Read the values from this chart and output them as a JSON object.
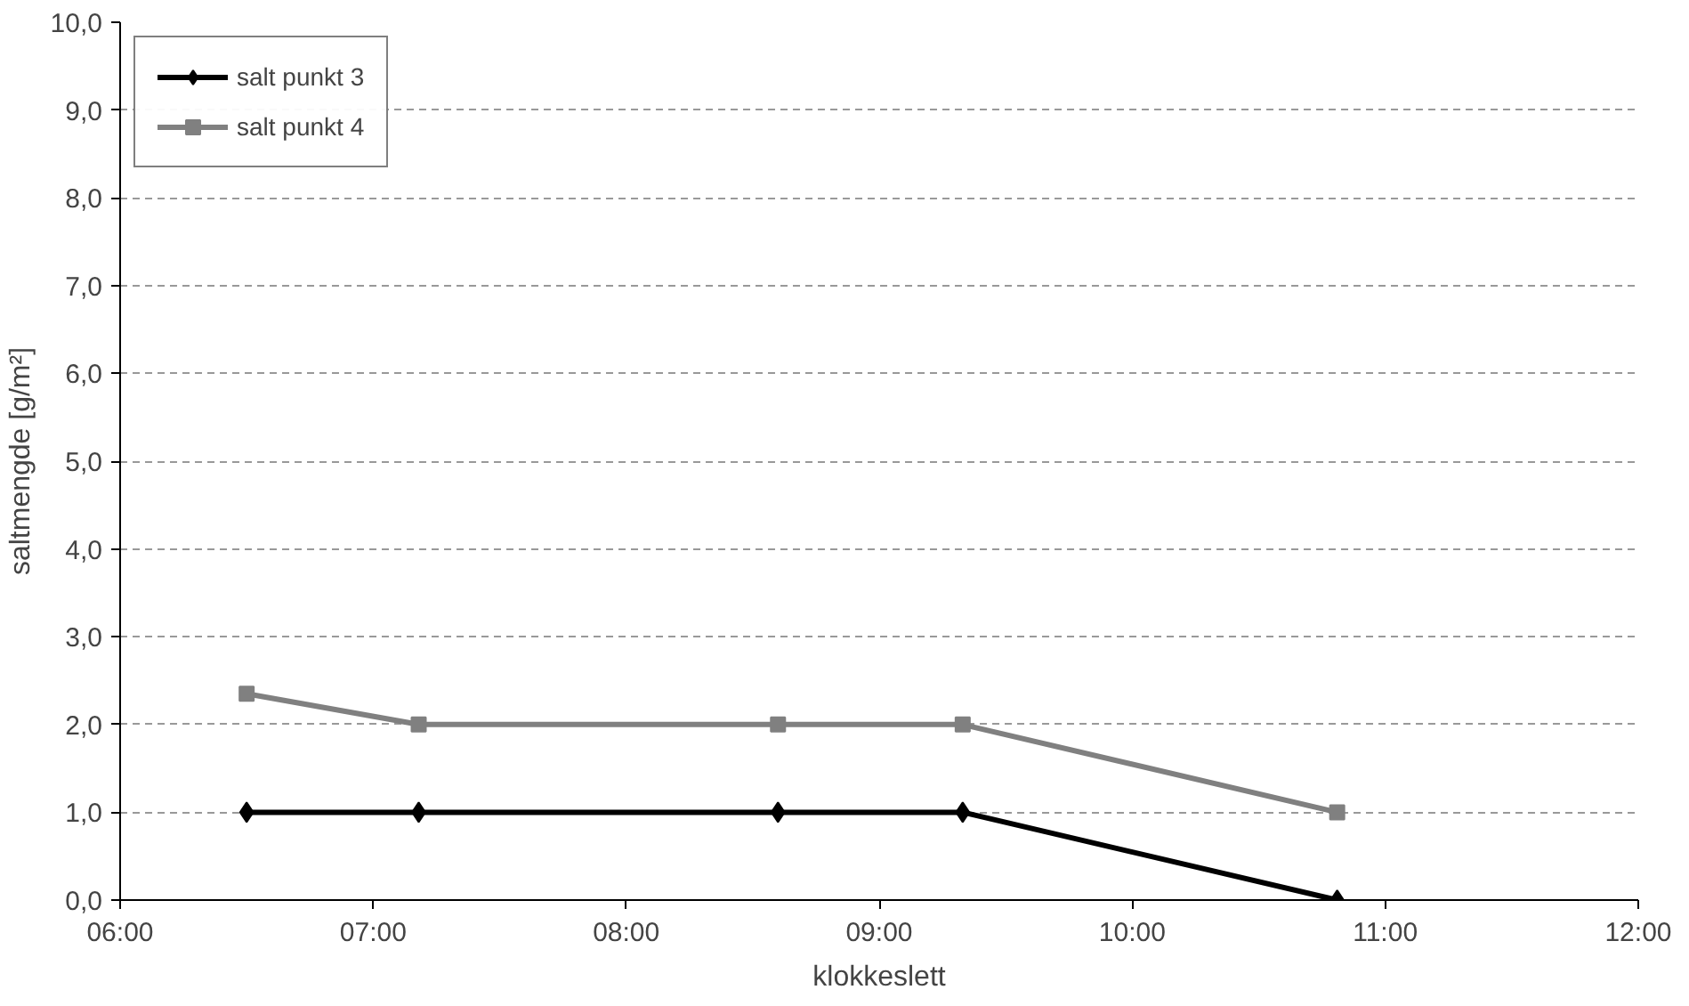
{
  "chart_data": {
    "type": "line",
    "xlabel": "klokkeslett",
    "ylabel": "saltmengde [g/m²]",
    "x": [
      6.5,
      7.18,
      8.6,
      9.33,
      10.81
    ],
    "series": [
      {
        "name": "salt punkt 3",
        "color": "#000000",
        "marker": "diamond",
        "values": [
          1.0,
          1.0,
          1.0,
          1.0,
          0.0
        ]
      },
      {
        "name": "salt punkt 4",
        "color": "#808080",
        "marker": "square",
        "values": [
          2.35,
          2.0,
          2.0,
          2.0,
          1.0
        ]
      }
    ],
    "xlim": [
      6,
      12
    ],
    "xticks": [
      {
        "value": 6,
        "label": "06:00"
      },
      {
        "value": 7,
        "label": "07:00"
      },
      {
        "value": 8,
        "label": "08:00"
      },
      {
        "value": 9,
        "label": "09:00"
      },
      {
        "value": 10,
        "label": "10:00"
      },
      {
        "value": 11,
        "label": "11:00"
      },
      {
        "value": 12,
        "label": "12:00"
      }
    ],
    "ylim": [
      0,
      10
    ],
    "yticks": [
      {
        "value": 0,
        "label": "0,0"
      },
      {
        "value": 1,
        "label": "1,0"
      },
      {
        "value": 2,
        "label": "2,0"
      },
      {
        "value": 3,
        "label": "3,0"
      },
      {
        "value": 4,
        "label": "4,0"
      },
      {
        "value": 5,
        "label": "5,0"
      },
      {
        "value": 6,
        "label": "6,0"
      },
      {
        "value": 7,
        "label": "7,0"
      },
      {
        "value": 8,
        "label": "8,0"
      },
      {
        "value": 9,
        "label": "9,0"
      },
      {
        "value": 10,
        "label": "10,0"
      }
    ],
    "grid": "y",
    "legend": "top left",
    "line_style": "solid"
  }
}
